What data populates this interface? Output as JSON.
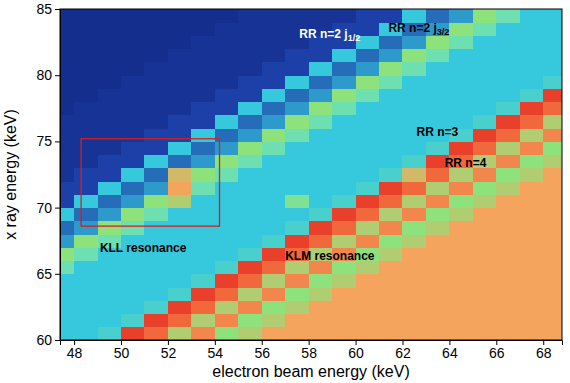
{
  "chart_data": {
    "type": "heatmap",
    "xlabel": "electron beam energy (keV)",
    "ylabel": "x ray energy (keV)",
    "xlim": [
      47.4,
      68.8
    ],
    "ylim": [
      60,
      85
    ],
    "xticks": [
      48,
      50,
      52,
      54,
      56,
      58,
      60,
      62,
      64,
      66,
      68
    ],
    "yticks": [
      60,
      65,
      70,
      75,
      80,
      85
    ],
    "xbins": [
      47,
      48,
      49,
      50,
      51,
      52,
      53,
      54,
      55,
      56,
      57,
      58,
      59,
      60,
      61,
      62,
      63,
      64,
      65,
      66,
      67,
      68,
      69
    ],
    "ybins": [
      60,
      61,
      62,
      63,
      64,
      65,
      66,
      67,
      68,
      69,
      70,
      71,
      72,
      73,
      74,
      75,
      76,
      77,
      78,
      79,
      80,
      81,
      82,
      83,
      84,
      85
    ],
    "zlim": [
      0,
      10
    ],
    "cells": [
      [
        3,
        3,
        3.5,
        9,
        8,
        6,
        7.5,
        5.5,
        6,
        7,
        7,
        7,
        7,
        7,
        7,
        7,
        7,
        7,
        7,
        7,
        7,
        7
      ],
      [
        3,
        3,
        3,
        3.5,
        9,
        8,
        6,
        7.5,
        5.5,
        6,
        7,
        7,
        7,
        7,
        7,
        7,
        7,
        7,
        7,
        7,
        7,
        7
      ],
      [
        3,
        3,
        3,
        3,
        3.5,
        9,
        8,
        6,
        7.5,
        5.5,
        6,
        7,
        7,
        7,
        7,
        7,
        7,
        7,
        7,
        7,
        7,
        7
      ],
      [
        3,
        3,
        3,
        3,
        3,
        3.5,
        9,
        8,
        6,
        7.5,
        5.5,
        6,
        7,
        7,
        7,
        7,
        7,
        7,
        7,
        7,
        7,
        7
      ],
      [
        3,
        3,
        3,
        3,
        3,
        3,
        3.5,
        9,
        8,
        6,
        7.5,
        5.5,
        6,
        7,
        7,
        7,
        7,
        7,
        7,
        7,
        7,
        7
      ],
      [
        4.5,
        3,
        3,
        3,
        3,
        3,
        3,
        3.5,
        9,
        8,
        6,
        7.5,
        5.5,
        6,
        7,
        7,
        7,
        7,
        7,
        7,
        7,
        7
      ],
      [
        5.5,
        4.5,
        3,
        3,
        3,
        3,
        3,
        3,
        3.5,
        9,
        8,
        6,
        7.5,
        5.5,
        6,
        7,
        7,
        7,
        7,
        7,
        7,
        7
      ],
      [
        2.5,
        5.5,
        4.5,
        3,
        3,
        3,
        3,
        3,
        3,
        3.5,
        9,
        8,
        6,
        7.5,
        5.5,
        6,
        7,
        7,
        7,
        7,
        7,
        7
      ],
      [
        2,
        2.5,
        5.5,
        4.5,
        3,
        3,
        3,
        3,
        3,
        3,
        3.5,
        9,
        8,
        6,
        7.5,
        5.5,
        6,
        7,
        7,
        7,
        7,
        7
      ],
      [
        3,
        2,
        2.5,
        5.5,
        4.5,
        3,
        3,
        3,
        3,
        3,
        3,
        3.5,
        9,
        8,
        6,
        7.5,
        5.5,
        6,
        7,
        7,
        7,
        7
      ],
      [
        1.5,
        3,
        2,
        2.5,
        5.5,
        6,
        3,
        3,
        3,
        3,
        5,
        3,
        3.5,
        9,
        8,
        6,
        7.5,
        5.5,
        6,
        7,
        7,
        7
      ],
      [
        1.5,
        1.5,
        3,
        2,
        2.5,
        7,
        4.5,
        3,
        3,
        3,
        3,
        3,
        3,
        3.5,
        9,
        8,
        6,
        7.5,
        5.5,
        6,
        7,
        7
      ],
      [
        1,
        1.5,
        1.5,
        3,
        2,
        6.5,
        5.5,
        4.5,
        3,
        3,
        3,
        3,
        3,
        3,
        3.5,
        6.5,
        8,
        6,
        7.5,
        5.5,
        6,
        7
      ],
      [
        1,
        1,
        1.5,
        1.5,
        3,
        2,
        2.5,
        5.5,
        4.5,
        3,
        3,
        3,
        3,
        3,
        3,
        3.5,
        9,
        8,
        6,
        7.5,
        5.5,
        6
      ],
      [
        1,
        1,
        1,
        1.5,
        1.5,
        3,
        2,
        2.5,
        5.5,
        4.5,
        3,
        3,
        3,
        3,
        3,
        3,
        3.5,
        9,
        8,
        6,
        7.5,
        5.5
      ],
      [
        1,
        1,
        1,
        1,
        1.5,
        1.5,
        3,
        2,
        2.5,
        5.5,
        4.5,
        3,
        3,
        3,
        3,
        3,
        3,
        3.5,
        9,
        8,
        6,
        7.5
      ],
      [
        1,
        1,
        1,
        1,
        1,
        1.5,
        1.5,
        3,
        2,
        2.5,
        5.5,
        4.5,
        3,
        3,
        3,
        3,
        3,
        3,
        3.5,
        9,
        8,
        6
      ],
      [
        0.8,
        1,
        1,
        1,
        1,
        1,
        1.5,
        1.5,
        3,
        2,
        2.5,
        5.5,
        4.5,
        3,
        3,
        3,
        3,
        3,
        3,
        3.5,
        9,
        8
      ],
      [
        0.8,
        0.8,
        1,
        1,
        1,
        1,
        1,
        1.5,
        1.5,
        3,
        2,
        2.5,
        5.5,
        4.5,
        3,
        3,
        3,
        3,
        3,
        3,
        3.5,
        9
      ],
      [
        0.8,
        0.8,
        0.8,
        1,
        1,
        1,
        1,
        1,
        1.5,
        1.5,
        3,
        2,
        2.5,
        5.5,
        4.5,
        3,
        3,
        3,
        3,
        3,
        3,
        3.5
      ],
      [
        0.8,
        0.8,
        0.8,
        0.8,
        1,
        1,
        1,
        1,
        1,
        1.5,
        1.5,
        3,
        2,
        2.5,
        5.5,
        4.5,
        3,
        3,
        3,
        3,
        3,
        3
      ],
      [
        0.8,
        0.8,
        0.8,
        0.8,
        0.8,
        1,
        1,
        1,
        1,
        1,
        1.5,
        1.5,
        3,
        2,
        2.5,
        5.5,
        4.5,
        3,
        3,
        3,
        3,
        3
      ],
      [
        0.8,
        0.8,
        0.8,
        0.8,
        0.8,
        0.8,
        1,
        1,
        1,
        1,
        1,
        1.5,
        1.5,
        3,
        2,
        2.5,
        5.5,
        4.5,
        3,
        3,
        3,
        3
      ],
      [
        0.8,
        0.8,
        0.8,
        0.8,
        0.8,
        0.8,
        0.8,
        1,
        1,
        1,
        1,
        1,
        1.5,
        1.5,
        3,
        2,
        2.5,
        5.5,
        4.5,
        3,
        3,
        3
      ],
      [
        0.8,
        0.8,
        0.8,
        0.8,
        0.8,
        0.8,
        0.8,
        0.8,
        1,
        1,
        1,
        1,
        1,
        1.5,
        1.5,
        3,
        2,
        2.5,
        5.5,
        4.5,
        3,
        3
      ]
    ],
    "annotations": [
      {
        "text": "RR n=2 j",
        "sub": "1/2",
        "x": 57.6,
        "y": 83.0,
        "color": "#ffffff"
      },
      {
        "text": "RR n=2 j",
        "sub": "3/2",
        "x": 61.4,
        "y": 83.5,
        "color": "#000000"
      },
      {
        "text": "RR n=3",
        "x": 62.6,
        "y": 75.6,
        "color": "#000000"
      },
      {
        "text": "RR n=4",
        "x": 63.8,
        "y": 73.3,
        "color": "#000000"
      },
      {
        "text": "KLM resonance",
        "x": 57.0,
        "y": 66.3,
        "color": "#000000"
      },
      {
        "text": "KLL resonance",
        "x": 49.1,
        "y": 66.9,
        "color": "#000000"
      }
    ],
    "box": {
      "x0": 48.3,
      "x1": 54.2,
      "y0": 68.6,
      "y1": 75.2,
      "color": "#d42020"
    }
  }
}
